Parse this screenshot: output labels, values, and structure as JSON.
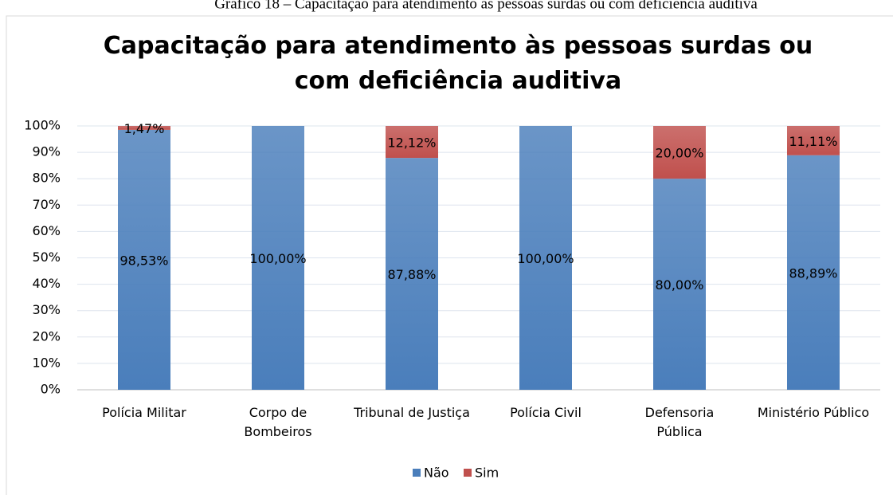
{
  "caption": "Gráfico 18 – Capacitação para atendimento às pessoas surdas ou com deficiência auditiva",
  "chart_data": {
    "type": "stacked_bar_100",
    "title": "Capacitação para atendimento às pessoas surdas ou com deficiência auditiva",
    "categories": [
      "Polícia Militar",
      "Corpo de\nBombeiros",
      "Tribunal de Justiça",
      "Polícia Civil",
      "Defensoria\nPública",
      "Ministério Público"
    ],
    "series": [
      {
        "name": "Não",
        "color": "#4a7ebb",
        "values": [
          98.53,
          100,
          87.88,
          100,
          80,
          88.89
        ],
        "value_labels": [
          "98,53%",
          "100,00%",
          "87,88%",
          "100,00%",
          "80,00%",
          "88,89%"
        ]
      },
      {
        "name": "Sim",
        "color": "#c0504d",
        "values": [
          1.47,
          0,
          12.12,
          0,
          20,
          11.11
        ],
        "value_labels": [
          "1,47%",
          null,
          "12,12%",
          null,
          "20,00%",
          "11,11%"
        ]
      }
    ],
    "ylim": [
      0,
      100
    ],
    "yticks": [
      {
        "value": 0,
        "label": "0%"
      },
      {
        "value": 10,
        "label": "10%"
      },
      {
        "value": 20,
        "label": "20%"
      },
      {
        "value": 30,
        "label": "30%"
      },
      {
        "value": 40,
        "label": "40%"
      },
      {
        "value": 50,
        "label": "50%"
      },
      {
        "value": 60,
        "label": "60%"
      },
      {
        "value": 70,
        "label": "70%"
      },
      {
        "value": 80,
        "label": "80%"
      },
      {
        "value": 90,
        "label": "90%"
      },
      {
        "value": 100,
        "label": "100%"
      }
    ],
    "grid": true,
    "legend": "bottom"
  }
}
